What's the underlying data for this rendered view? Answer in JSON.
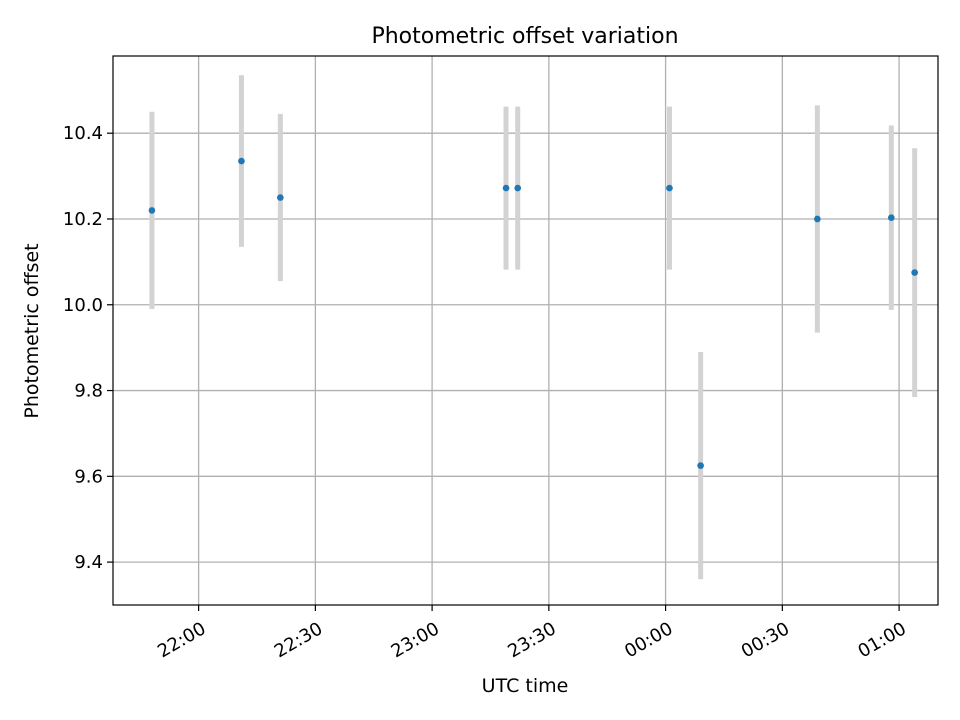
{
  "chart_data": {
    "type": "scatter",
    "title": "Photometric offset variation",
    "xlabel": "UTC time",
    "ylabel": "Photometric offset",
    "xlim": [
      "21:38",
      "01:10"
    ],
    "ylim": [
      9.3,
      10.58
    ],
    "grid": true,
    "x_ticks": [
      "22:00",
      "22:30",
      "23:00",
      "23:30",
      "00:00",
      "00:30",
      "01:00"
    ],
    "y_ticks": [
      "9.4",
      "9.6",
      "9.8",
      "10.0",
      "10.2",
      "10.4"
    ],
    "marker_color": "#1f77b4",
    "errorbar_color": "#d3d3d3",
    "points": [
      {
        "x": "21:48",
        "y": 10.22,
        "err": 0.23
      },
      {
        "x": "22:11",
        "y": 10.335,
        "err": 0.2
      },
      {
        "x": "22:21",
        "y": 10.25,
        "err": 0.195
      },
      {
        "x": "23:19",
        "y": 10.272,
        "err": 0.19
      },
      {
        "x": "23:22",
        "y": 10.272,
        "err": 0.19
      },
      {
        "x": "00:01",
        "y": 10.272,
        "err": 0.19
      },
      {
        "x": "00:09",
        "y": 9.625,
        "err": 0.265
      },
      {
        "x": "00:39",
        "y": 10.2,
        "err": 0.265
      },
      {
        "x": "00:58",
        "y": 10.203,
        "err": 0.215
      },
      {
        "x": "01:04",
        "y": 10.075,
        "err": 0.29
      }
    ]
  }
}
